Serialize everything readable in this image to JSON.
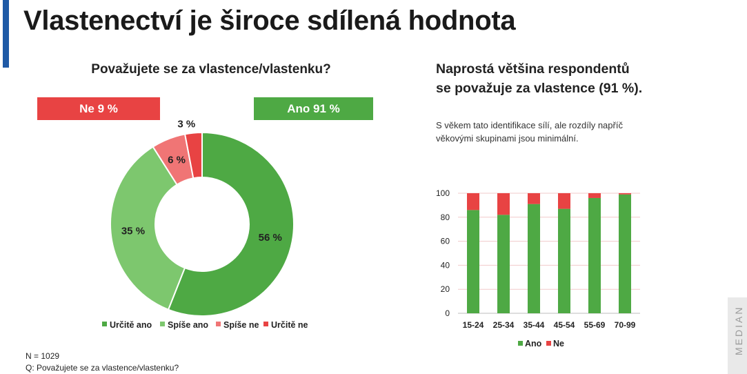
{
  "title": "Vlastenectví je široce sdílená hodnota",
  "left": {
    "question": "Považujete se za vlastence/vlastenku?",
    "badge_ne": "Ne 9 %",
    "badge_ano": "Ano 91 %"
  },
  "right": {
    "headline_line1": "Naprostá většina respondentů",
    "headline_line2": "se považuje za vlastence (91 %).",
    "subtitle": "S věkem tato identifikace sílí, ale rozdíly napříč věkovými skupinami jsou minimální."
  },
  "footnote": {
    "n": "N = 1029",
    "q": "Q: Považujete se za vlastence/vlastenku?"
  },
  "logo": "MEDIAN",
  "colors": {
    "accent": "#1f5aa6",
    "urcite_ano": "#4ea944",
    "spise_ano": "#7dc76e",
    "spise_ne": "#f07575",
    "urcite_ne": "#e84343",
    "ano": "#4ea944",
    "ne": "#e84343"
  },
  "chart_data": [
    {
      "type": "pie",
      "variant": "donut",
      "title": "Považujete se za vlastence/vlastenku?",
      "categories": [
        "Určitě ano",
        "Spíše ano",
        "Spíše ne",
        "Určitě ne"
      ],
      "values": [
        56,
        35,
        6,
        3
      ],
      "labels": [
        "56 %",
        "35 %",
        "6 %",
        "3 %"
      ],
      "legend": "bottom"
    },
    {
      "type": "bar",
      "stacked": true,
      "categories": [
        "15-24",
        "25-34",
        "35-44",
        "45-54",
        "55-69",
        "70-99"
      ],
      "series": [
        {
          "name": "Ano",
          "values": [
            86,
            82,
            91,
            87,
            96,
            99
          ]
        },
        {
          "name": "Ne",
          "values": [
            14,
            18,
            9,
            13,
            4,
            1
          ]
        }
      ],
      "ylim": [
        0,
        100
      ],
      "yticks": [
        "0",
        "20",
        "40",
        "60",
        "80",
        "100"
      ],
      "grid": true,
      "legend": "bottom"
    }
  ]
}
